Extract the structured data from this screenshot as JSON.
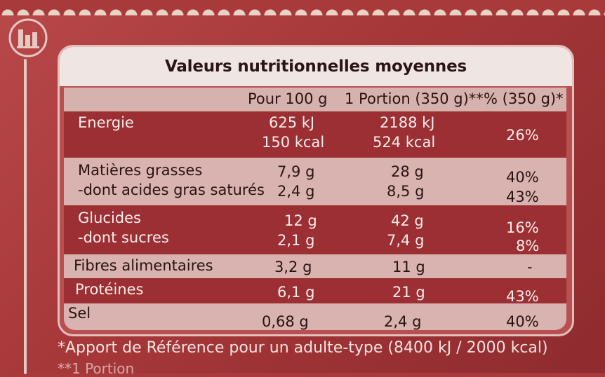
{
  "table": {
    "title": "Valeurs nutritionnelles moyennes",
    "columns": [
      "Pour 100 g",
      "1 Portion (350 g)**",
      "% (350 g)*"
    ],
    "rows": [
      {
        "label": "Energie",
        "sub": "",
        "v100": "625 kJ",
        "v100b": "150 kcal",
        "portion": "2188 kJ",
        "portionb": "524 kcal",
        "pct": "26%",
        "pctb": ""
      },
      {
        "label": "Matières grasses",
        "sub": "-dont acides gras saturés",
        "v100": "7,9 g",
        "v100b": "2,4 g",
        "portion": "28 g",
        "portionb": "8,5 g",
        "pct": "40%",
        "pctb": "43%"
      },
      {
        "label": "Glucides",
        "sub": "-dont sucres",
        "v100": "12 g",
        "v100b": "2,1 g",
        "portion": "42 g",
        "portionb": "7,4 g",
        "pct": "16%",
        "pctb": "8%"
      },
      {
        "label": "Fibres alimentaires",
        "sub": "",
        "v100": "3,2 g",
        "v100b": "",
        "portion": "11 g",
        "portionb": "",
        "pct": "-",
        "pctb": ""
      },
      {
        "label": "Protéines",
        "sub": "",
        "v100": "6,1 g",
        "v100b": "",
        "portion": "21 g",
        "portionb": "",
        "pct": "43%",
        "pctb": ""
      },
      {
        "label": "Sel",
        "sub": "",
        "v100": "0,68 g",
        "v100b": "",
        "portion": "2,4 g",
        "portionb": "",
        "pct": "40%",
        "pctb": ""
      }
    ]
  },
  "footnote": "*Apport de Référence pour un adulte-type (8400 kJ / 2000 kcal)",
  "footnote2": "**1 Portion"
}
